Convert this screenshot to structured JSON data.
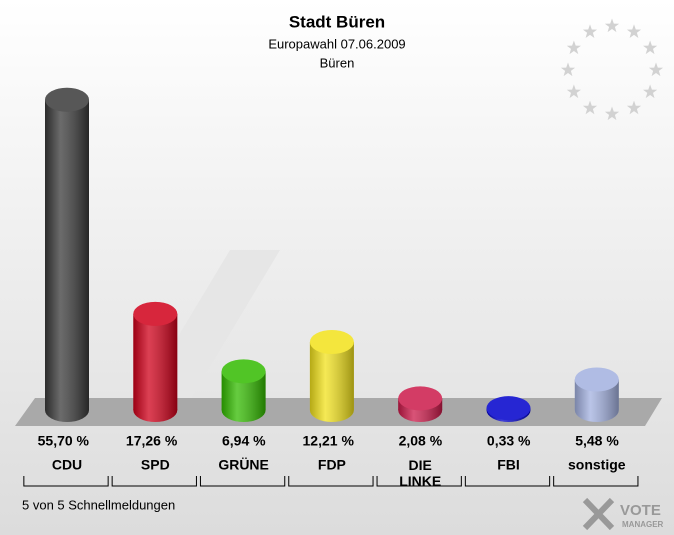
{
  "chart_data": {
    "type": "bar",
    "title": "Stadt Büren",
    "subtitle": "Europawahl 07.06.2009",
    "subtitle2": "Büren",
    "categories": [
      "CDU",
      "SPD",
      "GRÜNE",
      "FDP",
      "DIE LINKE",
      "FBI",
      "sonstige"
    ],
    "values": [
      55.7,
      17.26,
      6.94,
      12.21,
      2.08,
      0.33,
      5.48
    ],
    "value_labels": [
      "55,70 %",
      "17,26 %",
      "6,94 %",
      "12,21 %",
      "2,08 %",
      "0,33 %",
      "5,48 %"
    ],
    "colors": [
      "#3a3a3a",
      "#d0001a",
      "#33bb00",
      "#f2e21c",
      "#cc1a4a",
      "#0000cc",
      "#a3b1e0"
    ],
    "footer": "5 von 5 Schnellmeldungen",
    "logo": "VOTE",
    "logo2": "MANAGER"
  }
}
